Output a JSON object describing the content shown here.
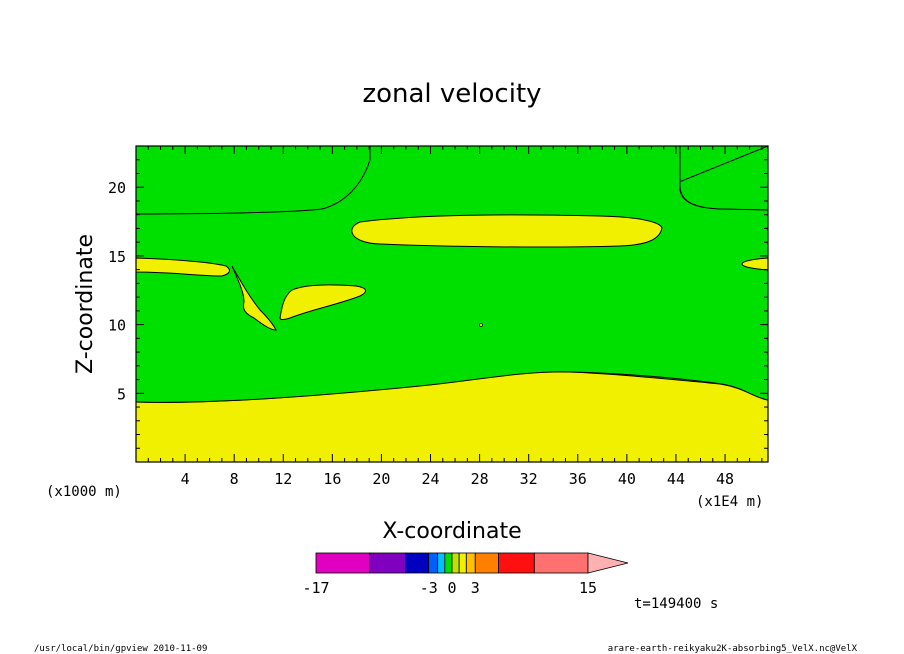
{
  "chart_data": {
    "type": "heatmap",
    "title": "zonal velocity",
    "xlabel": "X-coordinate",
    "ylabel": "Z-coordinate",
    "x_unit_left": "(x1000 m)",
    "x_unit_right": "(x1E4 m)",
    "xlim": [
      0,
      51.5
    ],
    "ylim": [
      0,
      23
    ],
    "x_ticks": [
      4,
      8,
      12,
      16,
      20,
      24,
      28,
      32,
      36,
      40,
      44,
      48
    ],
    "y_ticks": [
      5,
      10,
      15,
      20
    ],
    "fill_levels": [
      {
        "range": "0 to 1",
        "color": "#f0f000"
      },
      {
        "range": "-1 to 0",
        "color": "#00e000"
      }
    ],
    "colorbar": {
      "tick_labels": [
        "-17",
        "-3",
        "0",
        "3",
        "15"
      ],
      "segments": [
        {
          "color": "#e000c0",
          "w": 3
        },
        {
          "color": "#8000c0",
          "w": 2
        },
        {
          "color": "#0000c0",
          "w": 1.3
        },
        {
          "color": "#0060ff",
          "w": 0.5
        },
        {
          "color": "#00c0ff",
          "w": 0.4
        },
        {
          "color": "#00e000",
          "w": 0.4
        },
        {
          "color": "#c0e000",
          "w": 0.4
        },
        {
          "color": "#f0f000",
          "w": 0.4
        },
        {
          "color": "#ffc000",
          "w": 0.5
        },
        {
          "color": "#ff8000",
          "w": 1.3
        },
        {
          "color": "#ff1010",
          "w": 2
        },
        {
          "color": "#ff7070",
          "w": 3
        }
      ],
      "overflow_color": "#ffb0b0"
    },
    "time_label": "t=149400 s"
  },
  "footer": {
    "left": "/usr/local/bin/gpview  2010-11-09",
    "right": "arare-earth-reikyaku2K-absorbing5_VelX.nc@VelX"
  }
}
